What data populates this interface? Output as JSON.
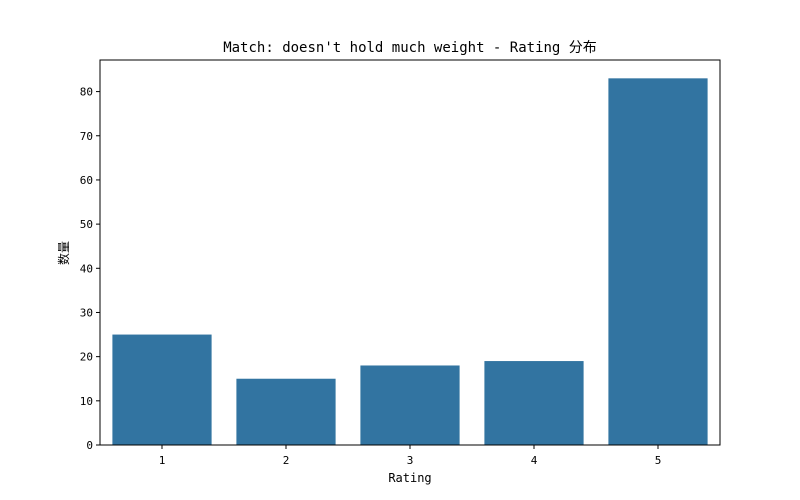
{
  "chart_data": {
    "type": "bar",
    "title": "Match: doesn't hold much weight - Rating 分布",
    "xlabel": "Rating",
    "ylabel": "数量",
    "categories": [
      "1",
      "2",
      "3",
      "4",
      "5"
    ],
    "values": [
      25,
      15,
      18,
      19,
      83
    ],
    "ylim": [
      0,
      87.15
    ],
    "yticks": [
      0,
      10,
      20,
      30,
      40,
      50,
      60,
      70,
      80
    ],
    "bar_color": "#3274a1",
    "grid": false,
    "legend": "none"
  }
}
